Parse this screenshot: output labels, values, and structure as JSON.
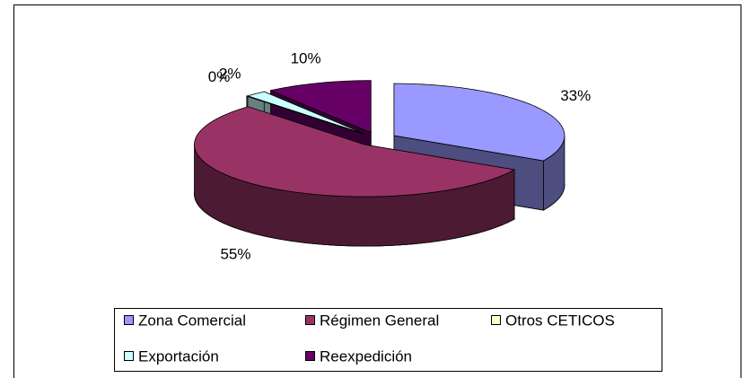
{
  "chart_data": {
    "type": "pie3d",
    "categories": [
      "Zona Comercial",
      "Régimen General",
      "Otros CETICOS",
      "Exportación",
      "Reexpedición"
    ],
    "values": [
      33,
      55,
      0,
      2,
      10
    ],
    "value_labels": [
      "33%",
      "55%",
      "0%",
      "2%",
      "10%"
    ],
    "colors": [
      "#9999ff",
      "#993366",
      "#ffffcc",
      "#ccffff",
      "#660066"
    ],
    "legend": "bottom"
  }
}
